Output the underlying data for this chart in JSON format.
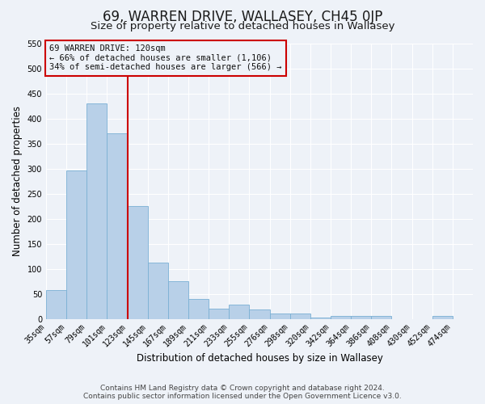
{
  "title": "69, WARREN DRIVE, WALLASEY, CH45 0JP",
  "subtitle": "Size of property relative to detached houses in Wallasey",
  "xlabel": "Distribution of detached houses by size in Wallasey",
  "ylabel": "Number of detached properties",
  "categories": [
    "35sqm",
    "57sqm",
    "79sqm",
    "101sqm",
    "123sqm",
    "145sqm",
    "167sqm",
    "189sqm",
    "211sqm",
    "233sqm",
    "255sqm",
    "276sqm",
    "298sqm",
    "320sqm",
    "342sqm",
    "364sqm",
    "386sqm",
    "408sqm",
    "430sqm",
    "452sqm",
    "474sqm"
  ],
  "values": [
    57,
    296,
    430,
    370,
    226,
    113,
    76,
    39,
    21,
    29,
    18,
    10,
    10,
    3,
    5,
    5,
    6,
    0,
    0,
    5,
    0
  ],
  "bar_color": "#b8d0e8",
  "bar_edge_color": "#7ab0d4",
  "marker_line_color": "#cc0000",
  "box_edge_color": "#cc0000",
  "ylim": [
    0,
    550
  ],
  "yticks": [
    0,
    50,
    100,
    150,
    200,
    250,
    300,
    350,
    400,
    450,
    500,
    550
  ],
  "marker_label": "69 WARREN DRIVE: 120sqm",
  "annotation_line1": "← 66% of detached houses are smaller (1,106)",
  "annotation_line2": "34% of semi-detached houses are larger (566) →",
  "footer1": "Contains HM Land Registry data © Crown copyright and database right 2024.",
  "footer2": "Contains public sector information licensed under the Open Government Licence v3.0.",
  "bg_color": "#eef2f8",
  "grid_color": "#ffffff",
  "title_fontsize": 12,
  "subtitle_fontsize": 9.5,
  "axis_label_fontsize": 8.5,
  "tick_fontsize": 7,
  "annotation_fontsize": 7.5,
  "footer_fontsize": 6.5
}
